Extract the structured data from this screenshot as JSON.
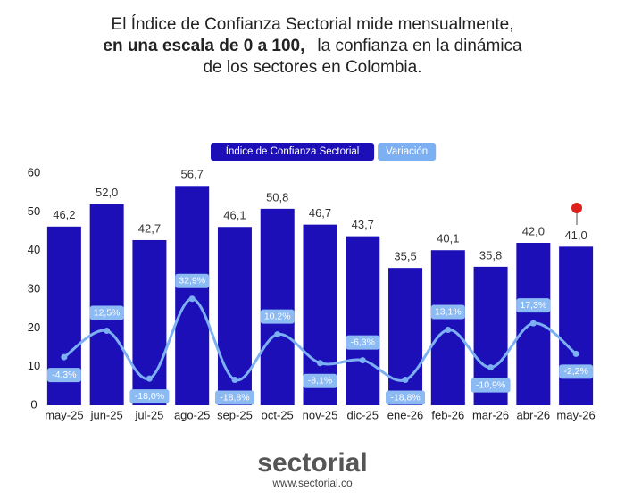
{
  "header": {
    "line1": "El Índice de Confianza Sectorial mide mensualmente,",
    "line2_bold": "en una escala de 0 a 100,",
    "line2_rest": "la confianza en la dinámica",
    "line3": "de los sectores en Colombia."
  },
  "chart_data": {
    "type": "bar",
    "categories": [
      "may-25",
      "jun-25",
      "jul-25",
      "ago-25",
      "sep-25",
      "oct-25",
      "nov-25",
      "dic-25",
      "ene-26",
      "feb-26",
      "mar-26",
      "abr-26",
      "may-26"
    ],
    "series": [
      {
        "name": "Índice de Confianza Sectorial",
        "type": "bar",
        "color": "#1c0fb8",
        "values": [
          46.2,
          52.0,
          42.7,
          56.7,
          46.1,
          50.8,
          46.7,
          43.7,
          35.5,
          40.1,
          35.8,
          42.0,
          41.0
        ],
        "value_labels": [
          "46,2",
          "52,0",
          "42,7",
          "56,7",
          "46,1",
          "50,8",
          "46,7",
          "43,7",
          "35,5",
          "40,1",
          "35,8",
          "42,0",
          "41,0"
        ]
      },
      {
        "name": "Variación",
        "type": "line",
        "axis": "y2",
        "color": "#7db0f2",
        "values": [
          -4.3,
          12.5,
          -18.0,
          32.9,
          -18.8,
          10.2,
          -8.1,
          -6.3,
          -18.8,
          13.1,
          -10.9,
          17.3,
          -2.2
        ],
        "value_labels": [
          "-4,3%",
          "12,5%",
          "-18,0%",
          "32,9%",
          "-18,8%",
          "10,2%",
          "-8,1%",
          "-6,3%",
          "-18,8%",
          "13,1%",
          "-10,9%",
          "17,3%",
          "-2,2%"
        ]
      }
    ],
    "ylim": [
      0,
      60
    ],
    "yticks": [
      0,
      10,
      20,
      30,
      40,
      50,
      60
    ],
    "y2lim": [
      -35,
      113
    ],
    "grid": false,
    "legend": "top"
  },
  "footer": {
    "logo": "sectorial",
    "url": "www.sectorial.co"
  }
}
